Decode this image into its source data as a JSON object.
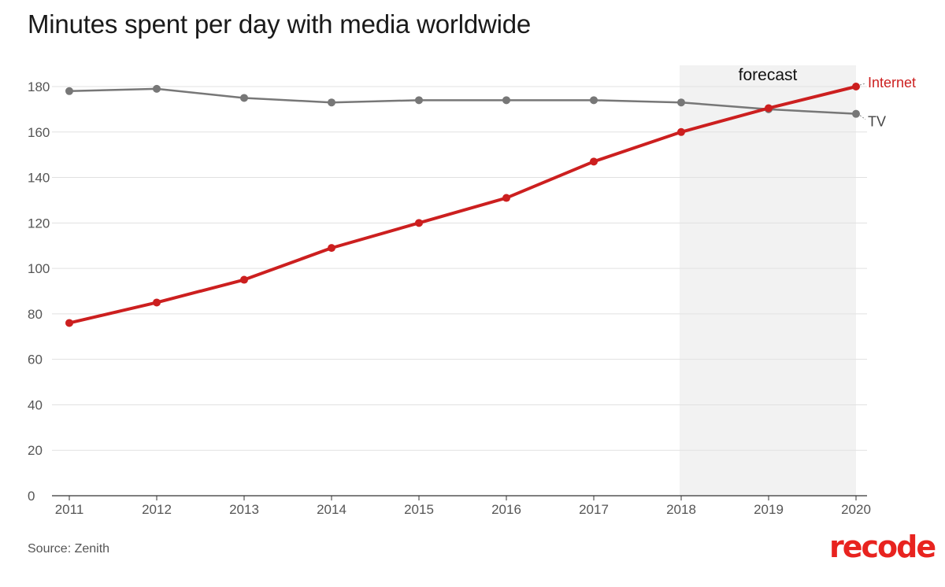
{
  "source": "Source: Zenith",
  "brand": "recode",
  "chart_data": {
    "type": "line",
    "title": "Minutes spent per day with media worldwide",
    "xlabel": "",
    "ylabel": "",
    "x": [
      2011,
      2012,
      2013,
      2014,
      2015,
      2016,
      2017,
      2018,
      2019,
      2020
    ],
    "ylim": [
      0,
      180
    ],
    "yticks": [
      0,
      20,
      40,
      60,
      80,
      100,
      120,
      140,
      160,
      180
    ],
    "grid": true,
    "forecast": {
      "label": "forecast",
      "from": 2018,
      "to": 2020,
      "color": "#f2f2f2"
    },
    "series": [
      {
        "name": "Internet",
        "color": "#cc1f1f",
        "values": [
          76,
          85,
          95,
          109,
          120,
          131,
          147,
          160,
          170.5,
          180
        ]
      },
      {
        "name": "TV",
        "color": "#777777",
        "values": [
          178,
          179,
          175,
          173,
          174,
          174,
          174,
          173,
          170,
          168
        ]
      }
    ]
  }
}
